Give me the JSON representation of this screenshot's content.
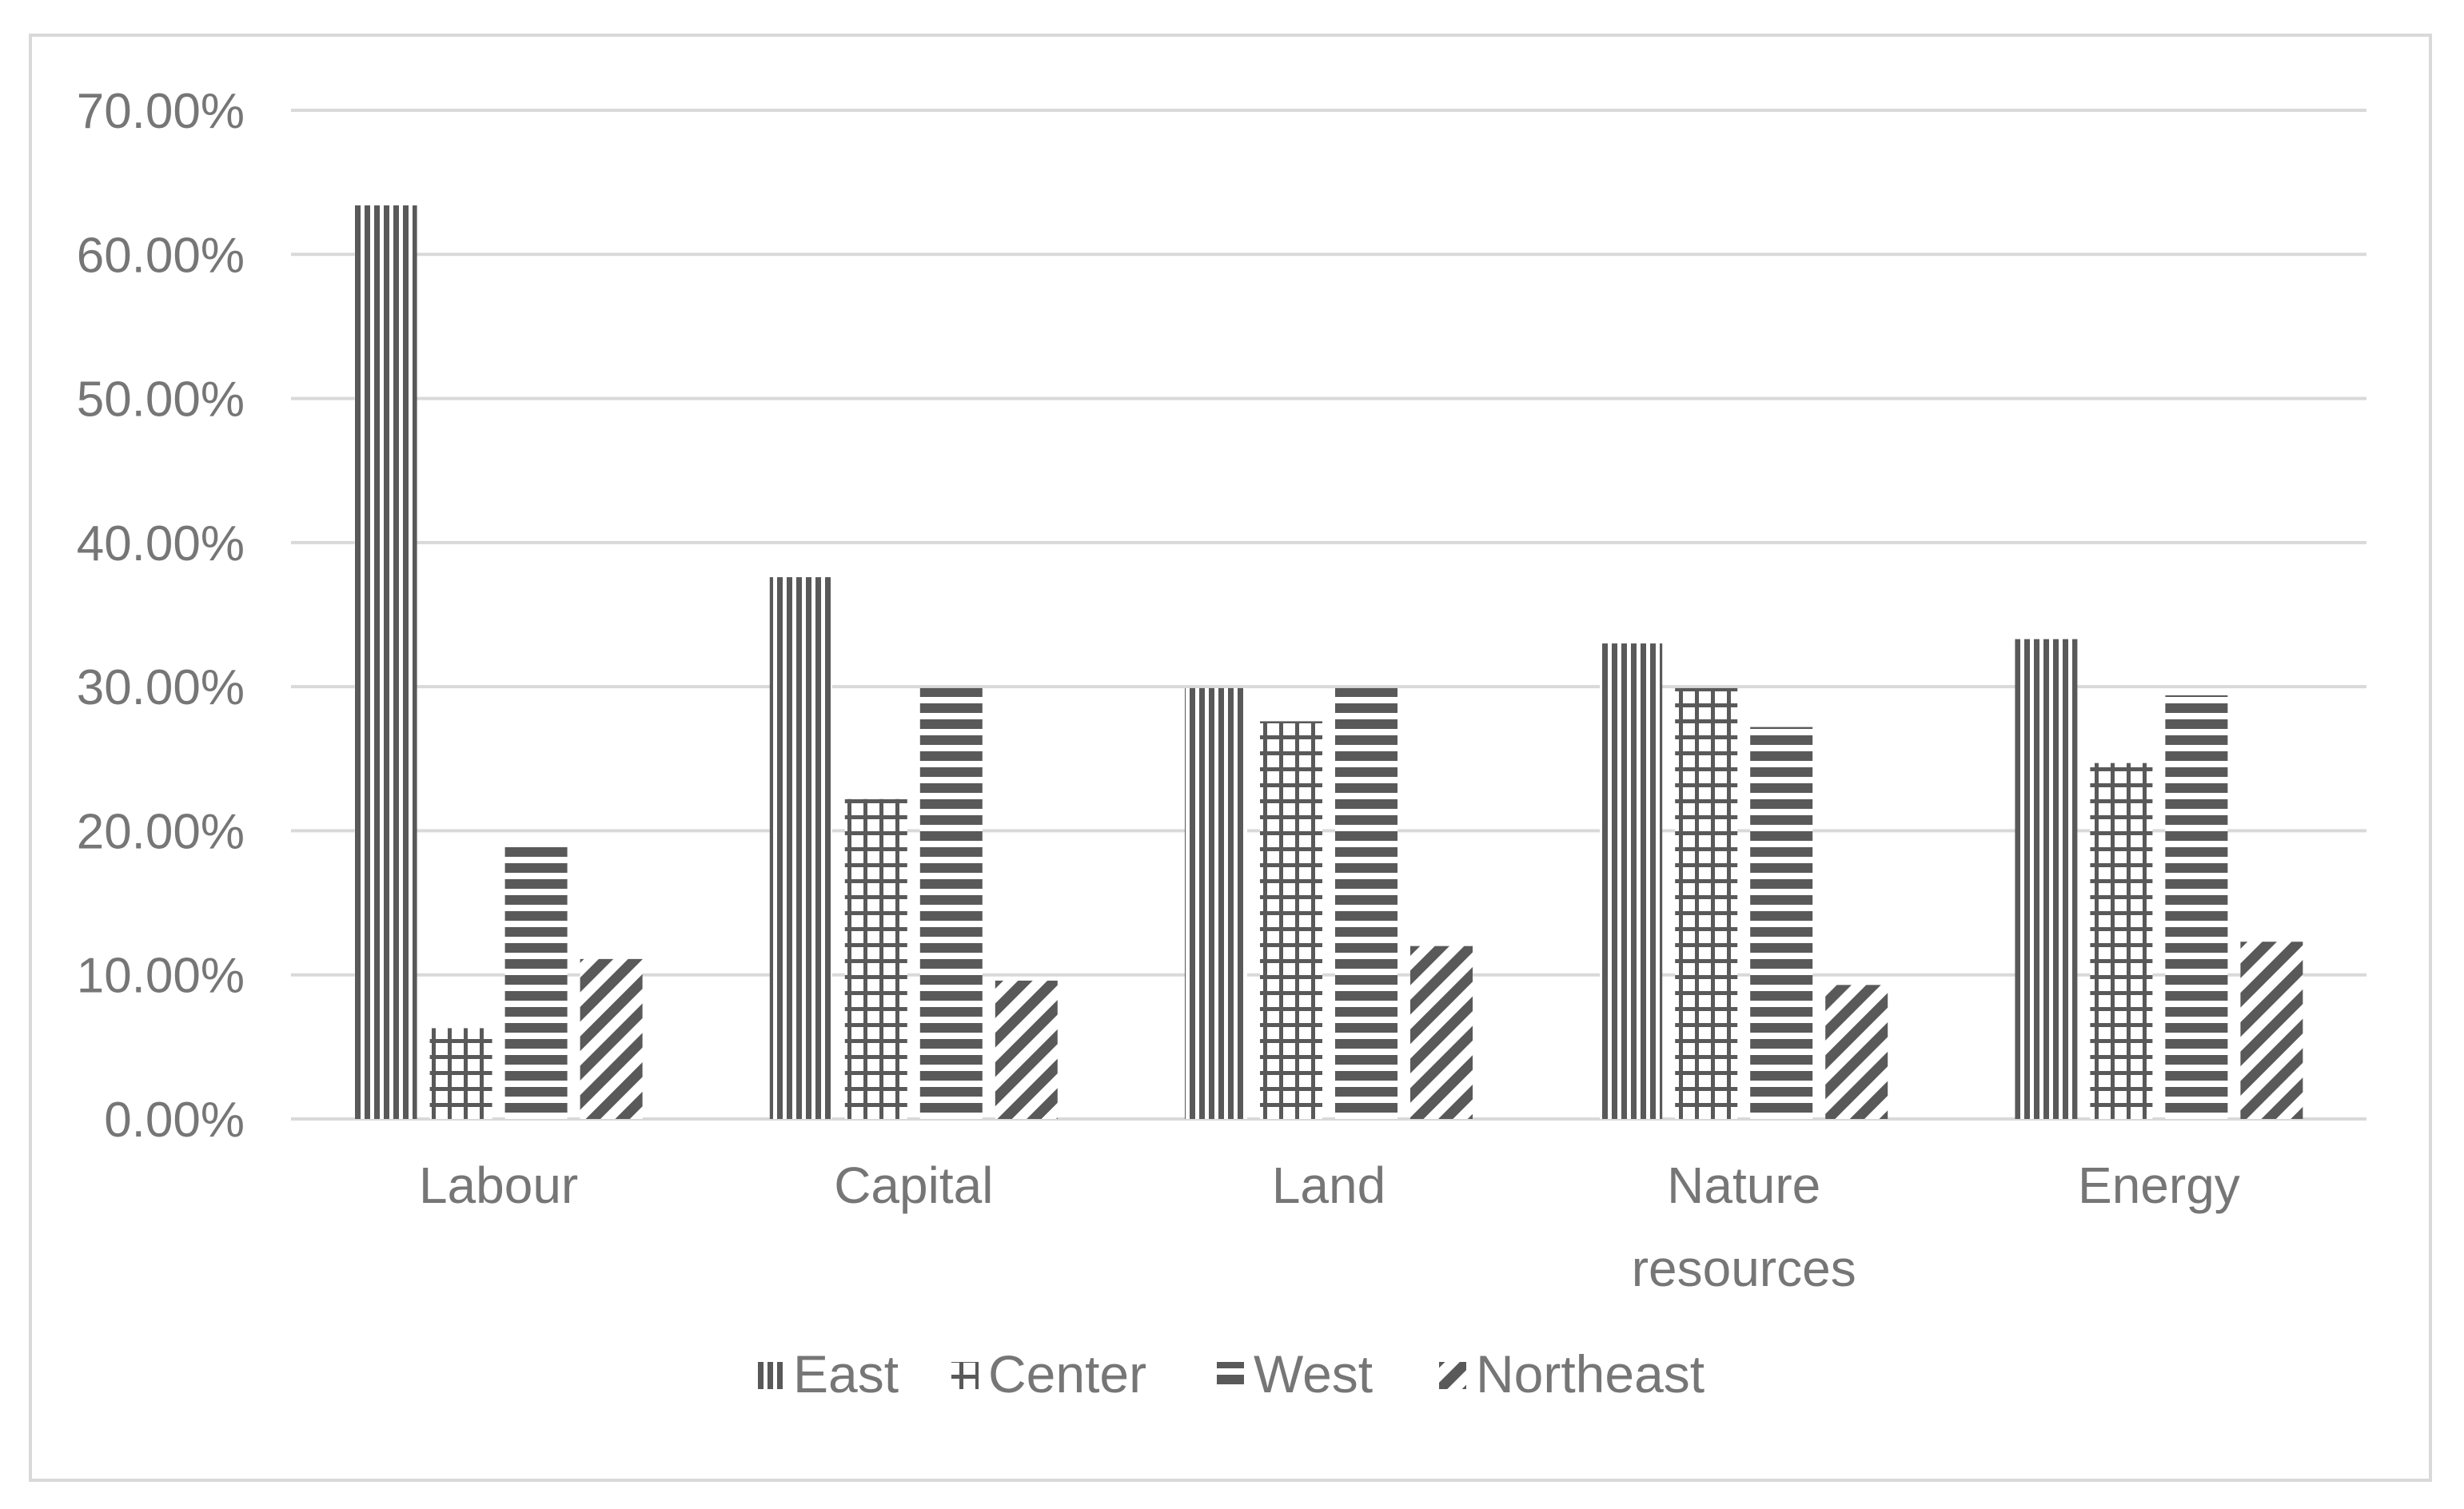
{
  "chart_data": {
    "type": "bar",
    "title": "",
    "xlabel": "",
    "ylabel": "",
    "ylim": [
      0,
      0.7
    ],
    "y_tick_step": 0.1,
    "y_tick_labels": [
      "0.00%",
      "10.00%",
      "20.00%",
      "30.00%",
      "40.00%",
      "50.00%",
      "60.00%",
      "70.00%"
    ],
    "grid": true,
    "legend_position": "bottom",
    "categories": [
      [
        "Labour"
      ],
      [
        "Capital"
      ],
      [
        "Land"
      ],
      [
        "Nature",
        "resources"
      ],
      [
        "Energy"
      ]
    ],
    "series": [
      {
        "name": "East",
        "pattern": "vertical-lines",
        "values": [
          0.634,
          0.376,
          0.299,
          0.33,
          0.333
        ]
      },
      {
        "name": "Center",
        "pattern": "grid",
        "values": [
          0.063,
          0.222,
          0.276,
          0.299,
          0.247
        ]
      },
      {
        "name": "West",
        "pattern": "horizontal-lines",
        "values": [
          0.189,
          0.299,
          0.299,
          0.272,
          0.294
        ]
      },
      {
        "name": "Northeast",
        "pattern": "diagonal-lines",
        "values": [
          0.111,
          0.096,
          0.12,
          0.093,
          0.123
        ]
      }
    ],
    "colors": {
      "bar": "#595959",
      "grid": "#d9d9d9",
      "text": "#767676",
      "border": "#d9d9d9"
    }
  }
}
